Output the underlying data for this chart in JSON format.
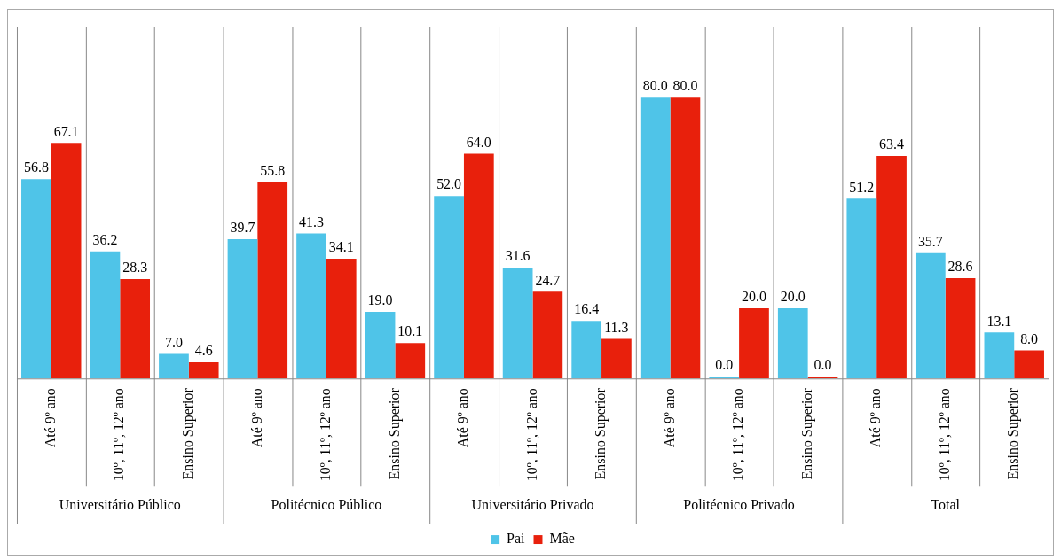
{
  "chart_data": {
    "type": "bar",
    "categories": [
      "Até 9º ano",
      "10º, 11º, 12º ano",
      "Ensino Superior",
      "Até 9º ano",
      "10º, 11º, 12º ano",
      "Ensino Superior",
      "Até 9º ano",
      "10º, 11º, 12º ano",
      "Ensino Superior",
      "Até 9º ano",
      "10º, 11º, 12º ano",
      "Ensino Superior",
      "Até 9º ano",
      "10º, 11º, 12º ano",
      "Ensino Superior"
    ],
    "annotations": [
      "Universitário Público",
      "Politécnico Público",
      "Universitário Privado",
      "Politécnico Privado",
      "Total"
    ],
    "series": [
      {
        "name": "Pai",
        "color": "#4fc4e8",
        "values": [
          56.8,
          36.2,
          7,
          39.7,
          41.3,
          19,
          52,
          31.6,
          16.4,
          80,
          0,
          20,
          51.2,
          35.7,
          13.1
        ],
        "value_labels": [
          "56.8",
          "36.2",
          "7.0",
          "39.7",
          "41.3",
          "19.0",
          "52.0",
          "31.6",
          "16.4",
          "80.0",
          "0.0",
          "20.0",
          "51.2",
          "35.7",
          "13.1"
        ]
      },
      {
        "name": "Mãe",
        "color": "#e8200c",
        "values": [
          67.1,
          28.3,
          4.6,
          55.8,
          34.1,
          10.1,
          64,
          24.7,
          11.3,
          80,
          20,
          0,
          63.4,
          28.6,
          8
        ],
        "value_labels": [
          "67.1",
          "28.3",
          "4.6",
          "55.8",
          "34.1",
          "10.1",
          "64.0",
          "24.7",
          "11.3",
          "80.0",
          "20.0",
          "0.0",
          "63.4",
          "28.6",
          "8.0"
        ]
      }
    ],
    "ylim": [
      0,
      100
    ],
    "tick_labels": "x",
    "grid": "x",
    "legend": "bottom"
  }
}
